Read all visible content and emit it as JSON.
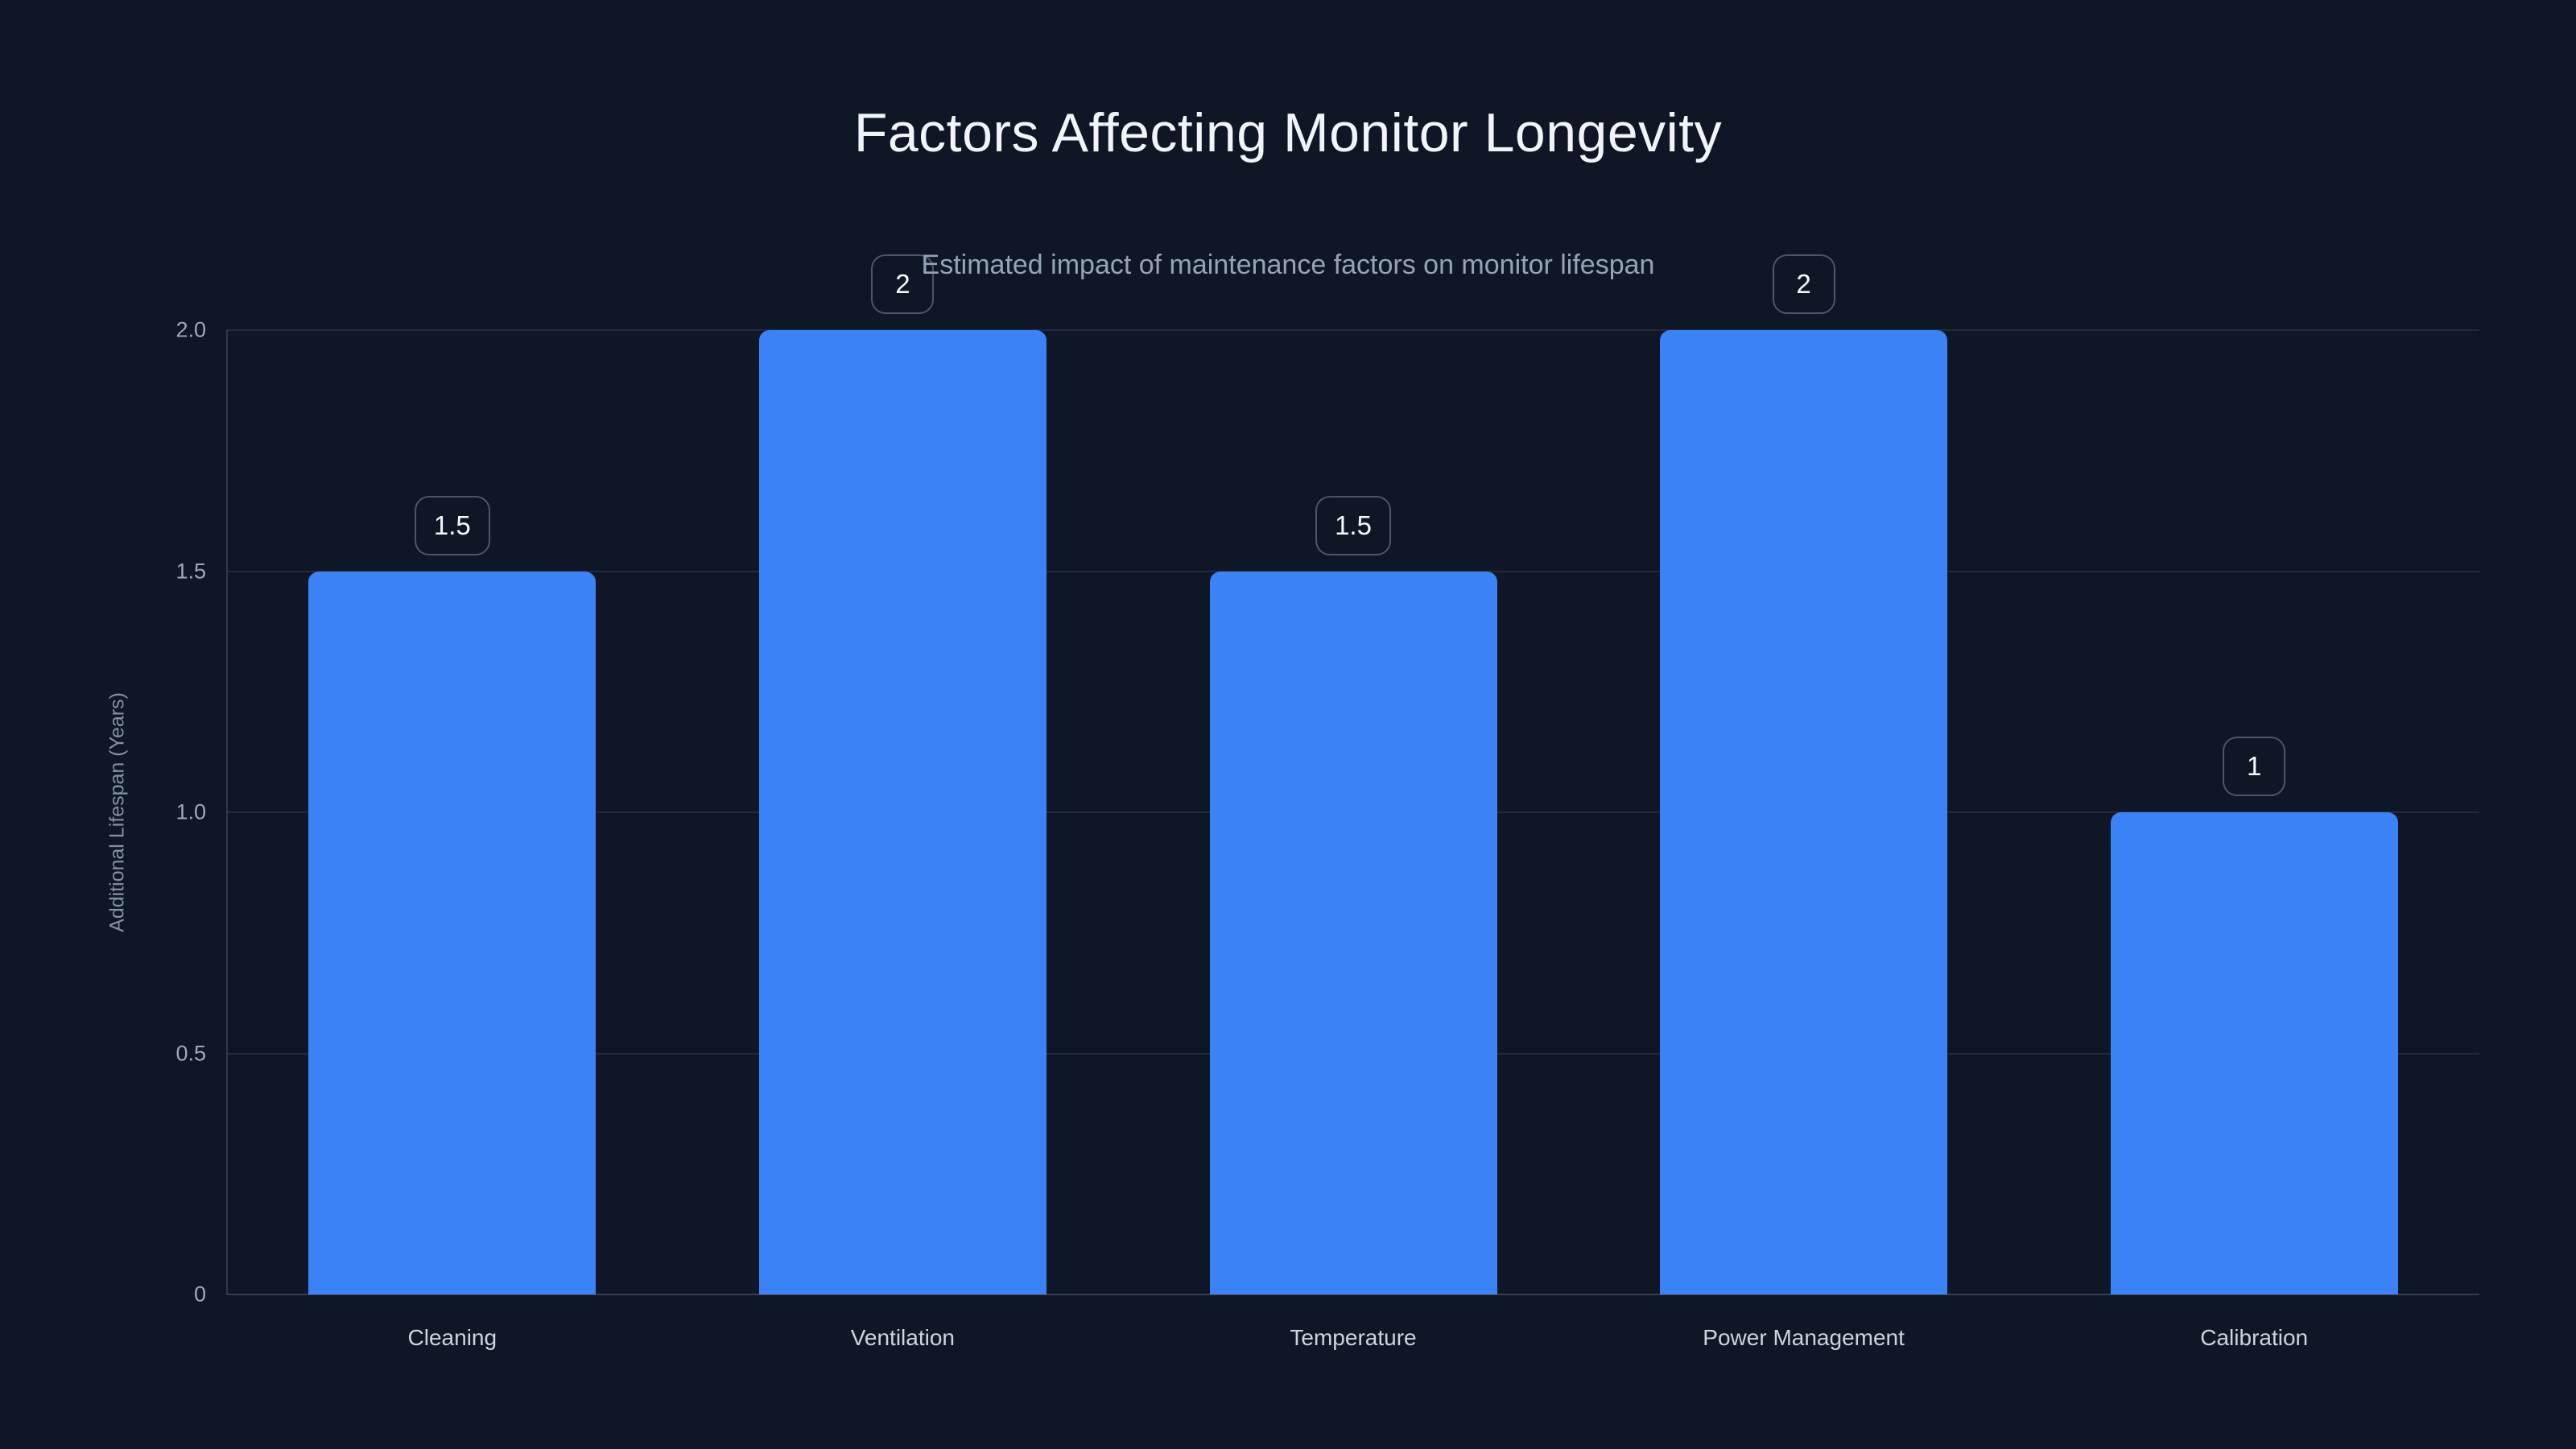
{
  "header": {
    "title": "Factors Affecting Monitor Longevity",
    "subtitle": "Estimated impact of maintenance factors on monitor lifespan"
  },
  "chart_data": {
    "type": "bar",
    "title": "Factors Affecting Monitor Longevity",
    "subtitle": "Estimated impact of maintenance factors on monitor lifespan",
    "categories": [
      "Cleaning",
      "Ventilation",
      "Temperature",
      "Power Management",
      "Calibration"
    ],
    "values": [
      1.5,
      2,
      1.5,
      2,
      1
    ],
    "value_labels": [
      "1.5",
      "2",
      "1.5",
      "2",
      "1"
    ],
    "xlabel": "",
    "ylabel": "Additional Lifespan (Years)",
    "ylim": [
      0,
      2
    ],
    "yticks": [
      {
        "value": 0,
        "label": "0"
      },
      {
        "value": 0.5,
        "label": "0.5"
      },
      {
        "value": 1,
        "label": "1.0"
      },
      {
        "value": 1.5,
        "label": "1.5"
      },
      {
        "value": 2,
        "label": "2.0"
      }
    ],
    "grid": "horizontal",
    "legend": "none",
    "colors": {
      "background": "#0f1726",
      "bar": "#3b82f6",
      "title_text": "#f1f5f9",
      "subtitle_text": "#94a3b8",
      "tick_text": "#9da9bc",
      "category_text": "#cbd5e1",
      "axis_title_text": "#8291a5",
      "badge_text": "#f8fafc"
    }
  }
}
